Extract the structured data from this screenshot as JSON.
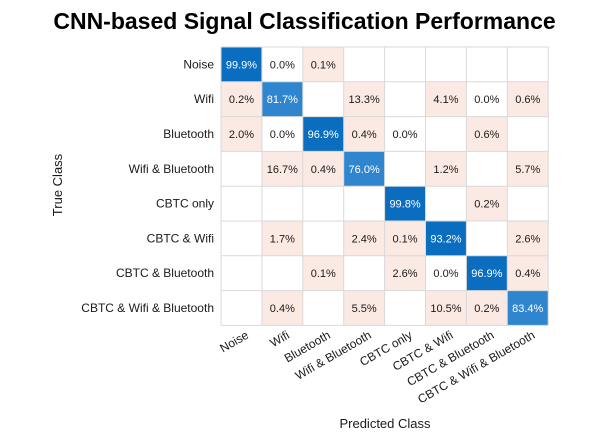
{
  "chart_data": {
    "type": "heatmap",
    "title": "CNN-based Signal Classification Performance",
    "xlabel": "Predicted Class",
    "ylabel": "True Class",
    "row_labels": [
      "Noise",
      "Wifi",
      "Bluetooth",
      "Wifi & Bluetooth",
      "CBTC only",
      "CBTC & Wifi",
      "CBTC & Bluetooth",
      "CBTC & Wifi & Bluetooth"
    ],
    "col_labels": [
      "Noise",
      "Wifi",
      "Bluetooth",
      "Wifi & Bluetooth",
      "CBTC only",
      "CBTC & Wifi",
      "CBTC & Bluetooth",
      "CBTC & Wifi & Bluetooth"
    ],
    "values": [
      [
        99.9,
        0.0,
        0.1,
        null,
        null,
        null,
        null,
        null
      ],
      [
        0.2,
        81.7,
        null,
        13.3,
        null,
        4.1,
        0.0,
        0.6
      ],
      [
        2.0,
        0.0,
        96.9,
        0.4,
        0.0,
        null,
        0.6,
        null
      ],
      [
        null,
        16.7,
        0.4,
        76.0,
        null,
        1.2,
        null,
        5.7
      ],
      [
        null,
        null,
        null,
        null,
        99.8,
        null,
        0.2,
        null
      ],
      [
        null,
        1.7,
        null,
        2.4,
        0.1,
        93.2,
        null,
        2.6
      ],
      [
        null,
        null,
        0.1,
        null,
        2.6,
        0.0,
        96.9,
        0.4
      ],
      [
        null,
        0.4,
        null,
        5.5,
        null,
        10.5,
        0.2,
        83.4
      ]
    ],
    "value_format": "percent_1dp",
    "colors": {
      "diagonal_high": "#0b6dc0",
      "diagonal_mid": "#2f86cf",
      "off_diagonal_tint": "#fbe9e4",
      "empty_cell": "#ffffff",
      "grid_line": "#d9d9d9",
      "diag_text": "#ffffff",
      "cell_text": "#1a1a1a"
    }
  }
}
